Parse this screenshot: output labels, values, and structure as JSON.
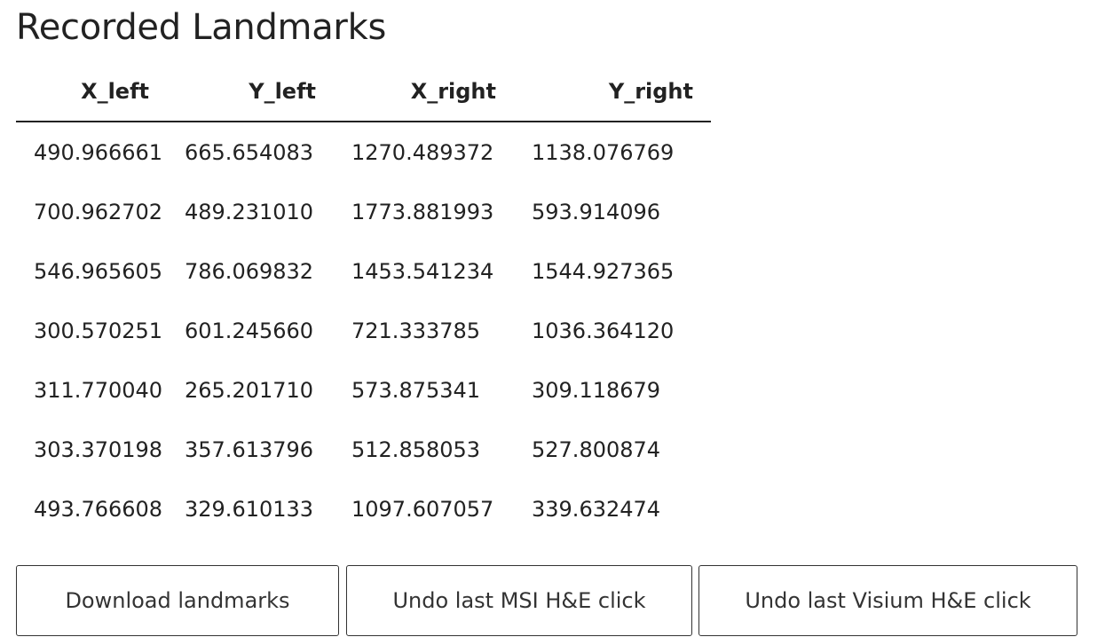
{
  "page": {
    "title": "Recorded Landmarks"
  },
  "table": {
    "columns": [
      "X_left",
      "Y_left",
      "X_right",
      "Y_right"
    ],
    "rows": [
      [
        "490.966661",
        "665.654083",
        "1270.489372",
        "1138.076769"
      ],
      [
        "700.962702",
        "489.231010",
        "1773.881993",
        "593.914096"
      ],
      [
        "546.965605",
        "786.069832",
        "1453.541234",
        "1544.927365"
      ],
      [
        "300.570251",
        "601.245660",
        "721.333785",
        "1036.364120"
      ],
      [
        "311.770040",
        "265.201710",
        "573.875341",
        "309.118679"
      ],
      [
        "303.370198",
        "357.613796",
        "512.858053",
        "527.800874"
      ],
      [
        "493.766608",
        "329.610133",
        "1097.607057",
        "339.632474"
      ]
    ]
  },
  "buttons": {
    "download_label": "Download landmarks",
    "undo_msi_label": "Undo last MSI H&E click",
    "undo_visium_label": "Undo last Visium H&E click"
  }
}
